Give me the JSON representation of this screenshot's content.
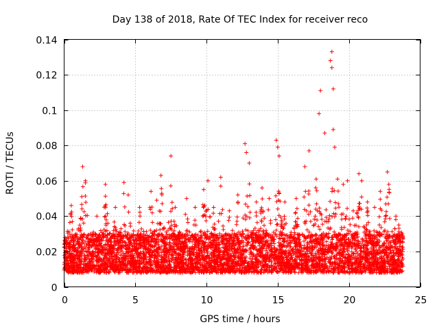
{
  "chart_data": {
    "type": "scatter",
    "title": "Day 138 of 2018, Rate Of TEC Index for receiver reco",
    "xlabel": "GPS time / hours",
    "ylabel": "ROTI / TECUs",
    "xlim": [
      0,
      25
    ],
    "ylim": [
      0,
      0.14
    ],
    "xticks": [
      0,
      5,
      10,
      15,
      20,
      25
    ],
    "xtick_labels": [
      "0",
      "5",
      "10",
      "15",
      "20",
      "25"
    ],
    "yticks": [
      0,
      0.02,
      0.04,
      0.06,
      0.08,
      0.1,
      0.12,
      0.14
    ],
    "ytick_labels": [
      "0",
      "0.02",
      "0.04",
      "0.06",
      "0.08",
      "0.1",
      "0.12",
      "0.14"
    ],
    "grid": true,
    "marker": "+",
    "series_color": "#ff0000",
    "data_range_x": [
      0,
      23.8
    ],
    "series": [
      {
        "name": "ROTI",
        "points": [
          [
            0.2,
            0.02
          ],
          [
            0.5,
            0.046
          ],
          [
            1.0,
            0.033
          ],
          [
            1.3,
            0.068
          ],
          [
            1.5,
            0.06
          ],
          [
            2.3,
            0.04
          ],
          [
            2.9,
            0.058
          ],
          [
            3.6,
            0.045
          ],
          [
            4.2,
            0.059
          ],
          [
            4.5,
            0.052
          ],
          [
            5.3,
            0.045
          ],
          [
            6.1,
            0.054
          ],
          [
            6.5,
            0.049
          ],
          [
            6.8,
            0.063
          ],
          [
            7.5,
            0.074
          ],
          [
            7.8,
            0.045
          ],
          [
            8.6,
            0.05
          ],
          [
            9.2,
            0.045
          ],
          [
            9.8,
            0.055
          ],
          [
            10.1,
            0.06
          ],
          [
            10.5,
            0.045
          ],
          [
            11.0,
            0.062
          ],
          [
            11.0,
            0.057
          ],
          [
            11.6,
            0.043
          ],
          [
            12.2,
            0.052
          ],
          [
            12.7,
            0.081
          ],
          [
            12.8,
            0.076
          ],
          [
            13.0,
            0.07
          ],
          [
            13.5,
            0.048
          ],
          [
            13.9,
            0.056
          ],
          [
            14.4,
            0.05
          ],
          [
            14.9,
            0.083
          ],
          [
            15.0,
            0.079
          ],
          [
            15.1,
            0.074
          ],
          [
            15.5,
            0.048
          ],
          [
            16.3,
            0.05
          ],
          [
            16.9,
            0.068
          ],
          [
            17.2,
            0.077
          ],
          [
            17.7,
            0.061
          ],
          [
            17.9,
            0.098
          ],
          [
            18.0,
            0.111
          ],
          [
            18.3,
            0.087
          ],
          [
            18.7,
            0.128
          ],
          [
            18.8,
            0.133
          ],
          [
            18.8,
            0.124
          ],
          [
            18.9,
            0.112
          ],
          [
            18.9,
            0.089
          ],
          [
            19.0,
            0.079
          ],
          [
            19.2,
            0.061
          ],
          [
            19.6,
            0.058
          ],
          [
            19.9,
            0.06
          ],
          [
            20.3,
            0.043
          ],
          [
            20.7,
            0.064
          ],
          [
            20.9,
            0.06
          ],
          [
            21.3,
            0.048
          ],
          [
            21.8,
            0.045
          ],
          [
            22.2,
            0.054
          ],
          [
            22.7,
            0.065
          ],
          [
            22.8,
            0.058
          ],
          [
            23.3,
            0.04
          ],
          [
            23.5,
            0.035
          ],
          [
            23.7,
            0.03
          ]
        ]
      }
    ]
  }
}
